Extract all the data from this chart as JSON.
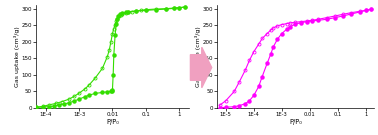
{
  "left_plot": {
    "xlabel": "P/P₀",
    "ylabel": "Gas uptake (cm³/g)",
    "xlim": [
      5e-05,
      2.0
    ],
    "ylim": [
      0,
      310
    ],
    "yticks": [
      0,
      50,
      100,
      150,
      200,
      250,
      300
    ],
    "xtick_labels": [
      "1E-4",
      "1E-3",
      "0.01",
      "0.1",
      "1"
    ],
    "xtick_vals": [
      0.0001,
      0.001,
      0.01,
      0.1,
      1
    ],
    "color": "#33dd00",
    "ads_x": [
      5e-05,
      8e-05,
      0.00012,
      0.00018,
      0.00025,
      0.00035,
      0.0005,
      0.0007,
      0.001,
      0.0015,
      0.002,
      0.003,
      0.005,
      0.007,
      0.009,
      0.0095,
      0.01,
      0.0105,
      0.011,
      0.012,
      0.013,
      0.014,
      0.015,
      0.017,
      0.02,
      0.025,
      0.03,
      0.05,
      0.1,
      0.2,
      0.4,
      0.7,
      1.0,
      1.5
    ],
    "ads_y": [
      2,
      3,
      4,
      6,
      9,
      12,
      16,
      21,
      27,
      34,
      39,
      44,
      47,
      49,
      51,
      52,
      55,
      100,
      160,
      220,
      255,
      270,
      278,
      283,
      287,
      289,
      291,
      293,
      295,
      297,
      299,
      301,
      303,
      305
    ],
    "des_x": [
      1.5,
      1.0,
      0.7,
      0.4,
      0.2,
      0.1,
      0.07,
      0.05,
      0.04,
      0.03,
      0.025,
      0.02,
      0.018,
      0.016,
      0.014,
      0.013,
      0.012,
      0.011,
      0.01,
      0.009,
      0.008,
      0.007,
      0.005,
      0.003,
      0.002,
      0.0015,
      0.001,
      0.0007,
      0.0005,
      0.0003,
      0.0002,
      0.00012,
      8e-05,
      5e-05
    ],
    "des_y": [
      305,
      303,
      302,
      300,
      299,
      297,
      295,
      293,
      291,
      289,
      287,
      285,
      282,
      278,
      270,
      262,
      252,
      240,
      225,
      200,
      175,
      155,
      120,
      90,
      70,
      58,
      45,
      35,
      27,
      19,
      14,
      9,
      5,
      2
    ]
  },
  "right_plot": {
    "xlabel": "P/P₀",
    "ylabel": "Gas uptake (cm³/g)",
    "xlim": [
      5e-06,
      2.0
    ],
    "ylim": [
      0,
      310
    ],
    "yticks": [
      0,
      50,
      100,
      150,
      200,
      250,
      300
    ],
    "xtick_labels": [
      "1E-5",
      "1E-4",
      "1E-3",
      "0.01",
      "0.1",
      "1"
    ],
    "xtick_vals": [
      1e-05,
      0.0001,
      0.001,
      0.01,
      0.1,
      1
    ],
    "color": "#ff00ff",
    "ads_x": [
      6e-06,
      1e-05,
      2e-05,
      3e-05,
      5e-05,
      7e-05,
      0.0001,
      0.00015,
      0.0002,
      0.0003,
      0.0004,
      0.0005,
      0.0007,
      0.001,
      0.0015,
      0.002,
      0.003,
      0.005,
      0.008,
      0.012,
      0.02,
      0.04,
      0.08,
      0.15,
      0.3,
      0.6,
      1.0,
      1.5
    ],
    "ads_y": [
      1,
      2,
      4,
      7,
      13,
      22,
      38,
      65,
      95,
      135,
      162,
      185,
      208,
      225,
      238,
      246,
      253,
      258,
      261,
      263,
      265,
      268,
      273,
      278,
      284,
      290,
      295,
      298
    ],
    "des_x": [
      1.5,
      1.0,
      0.6,
      0.3,
      0.15,
      0.08,
      0.04,
      0.02,
      0.012,
      0.008,
      0.005,
      0.003,
      0.002,
      0.0015,
      0.001,
      0.0007,
      0.0005,
      0.0004,
      0.0003,
      0.0002,
      0.00015,
      0.0001,
      7e-05,
      5e-05,
      3e-05,
      2e-05,
      1e-05,
      6e-06
    ],
    "des_y": [
      298,
      295,
      292,
      288,
      283,
      278,
      273,
      268,
      265,
      263,
      261,
      259,
      257,
      255,
      252,
      248,
      242,
      235,
      225,
      210,
      193,
      170,
      144,
      115,
      78,
      50,
      22,
      8
    ]
  },
  "arrow_color": "#f0a0c0",
  "bg_color": "#ffffff"
}
